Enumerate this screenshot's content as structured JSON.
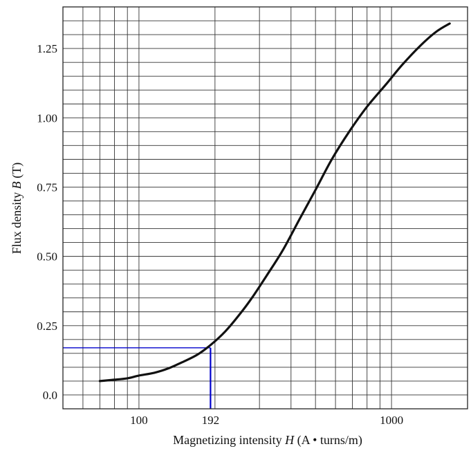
{
  "chart_data": {
    "type": "line",
    "xscale": "log",
    "xlim": [
      50,
      2000
    ],
    "ylim": [
      -0.05,
      1.4
    ],
    "xlabel": "Magnetizing intensity",
    "xlabel_var": "H",
    "xlabel_unit": "(A • turns/m)",
    "ylabel": "Flux density",
    "ylabel_var": "B",
    "ylabel_unit": "(T)",
    "x_ticks": [
      {
        "value": 100,
        "label": "100"
      },
      {
        "value": 192,
        "label": "192"
      },
      {
        "value": 1000,
        "label": "1000"
      }
    ],
    "y_ticks": [
      {
        "value": 0.0,
        "label": "0.0"
      },
      {
        "value": 0.25,
        "label": "0.25"
      },
      {
        "value": 0.5,
        "label": "0.50"
      },
      {
        "value": 0.75,
        "label": "0.75"
      },
      {
        "value": 1.0,
        "label": "1.00"
      },
      {
        "value": 1.25,
        "label": "1.25"
      }
    ],
    "grid": true,
    "series": [
      {
        "color": "#111111",
        "x": [
          70,
          80,
          90,
          100,
          115,
          130,
          150,
          170,
          192,
          220,
          250,
          280,
          320,
          370,
          430,
          500,
          580,
          680,
          800,
          950,
          1100,
          1300,
          1500,
          1700
        ],
        "y": [
          0.05,
          0.055,
          0.06,
          0.07,
          0.08,
          0.095,
          0.12,
          0.145,
          0.18,
          0.23,
          0.29,
          0.35,
          0.43,
          0.52,
          0.63,
          0.74,
          0.85,
          0.95,
          1.04,
          1.12,
          1.19,
          1.26,
          1.31,
          1.34
        ]
      }
    ],
    "annotation": {
      "x": 192,
      "y": 0.17,
      "color": "#0000cc"
    }
  }
}
